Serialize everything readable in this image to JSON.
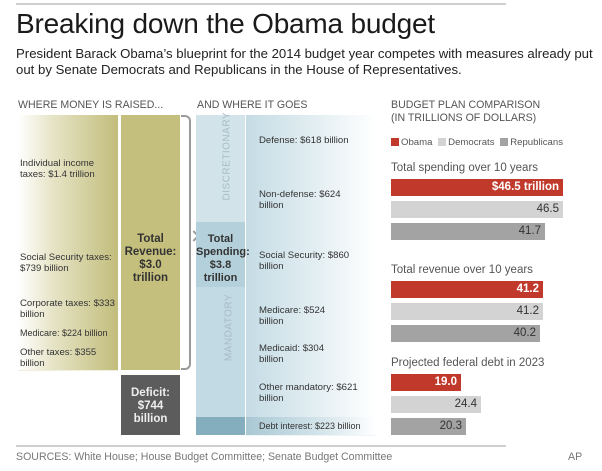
{
  "header": {
    "title": "Breaking down the Obama budget",
    "subtitle": "President Barack Obama’s blueprint for the 2014 budget year competes with measures already put out by Senate Democrats and Republicans in the House of Representatives."
  },
  "revenue": {
    "heading": "WHERE MONEY IS RAISED...",
    "items": [
      {
        "label": "Individual income taxes: $1.4 trillion",
        "value_billion": 1400
      },
      {
        "label": "Social Security taxes: $739 billion",
        "value_billion": 739
      },
      {
        "label": "Corporate taxes: $333 billion",
        "value_billion": 333
      },
      {
        "label": "Medicare: $224 billion",
        "value_billion": 224
      },
      {
        "label": "Other taxes: $355 billion",
        "value_billion": 355
      }
    ],
    "total": {
      "line1": "Total",
      "line2": "Revenue:",
      "line3": "$3.0",
      "line4": "trillion"
    },
    "deficit": {
      "line1": "Deficit:",
      "line2": "$744",
      "line3": "billion"
    }
  },
  "spending": {
    "heading": "AND WHERE IT GOES",
    "categories": {
      "discretionary": "DISCRETIONARY",
      "mandatory": "MANDATORY"
    },
    "items": [
      {
        "label": "Defense: $618 billion",
        "value_billion": 618,
        "category": "discretionary"
      },
      {
        "label": "Non-defense: $624 billion",
        "value_billion": 624,
        "category": "discretionary"
      },
      {
        "label": "Social Security: $860 billion",
        "value_billion": 860,
        "category": "mandatory"
      },
      {
        "label": "Medicare: $524 billion",
        "value_billion": 524,
        "category": "mandatory"
      },
      {
        "label": "Medicaid: $304 billion",
        "value_billion": 304,
        "category": "mandatory"
      },
      {
        "label": "Other mandatory: $621 billion",
        "value_billion": 621,
        "category": "mandatory"
      },
      {
        "label": "Debt interest: $223 billion",
        "value_billion": 223,
        "category": "interest"
      }
    ],
    "total": {
      "line1": "Total",
      "line2": "Spending:",
      "line3": "$3.8",
      "line4": "trillion"
    }
  },
  "comparison": {
    "heading_line1": "BUDGET PLAN COMPARISON",
    "heading_line2": "(IN TRILLIONS OF DOLLARS)",
    "legend": [
      {
        "name": "Obama",
        "color": "#c0392b"
      },
      {
        "name": "Democrats",
        "color": "#d3d3d3"
      },
      {
        "name": "Republicans",
        "color": "#a3a3a3"
      }
    ]
  },
  "chart_data": {
    "type": "bar",
    "title": "Budget plan comparison (in trillions of dollars)",
    "series_names": [
      "Obama",
      "Democrats",
      "Republicans"
    ],
    "groups": [
      {
        "title": "Total spending over 10 years",
        "values": [
          46.5,
          46.5,
          41.7
        ],
        "labels": [
          "$46.5 trillion",
          "46.5",
          "41.7"
        ]
      },
      {
        "title": "Total revenue over 10 years",
        "values": [
          41.2,
          41.2,
          40.2
        ],
        "labels": [
          "41.2",
          "41.2",
          "40.2"
        ]
      },
      {
        "title": "Projected federal debt in 2023",
        "values": [
          19.0,
          24.4,
          20.3
        ],
        "labels": [
          "19.0",
          "24.4",
          "20.3"
        ]
      }
    ],
    "xlim": [
      0,
      46.5
    ],
    "orientation": "horizontal",
    "legend": "top-left"
  },
  "footer": {
    "sources": "SOURCES: White House; House Budget Committee; Senate Budget Committee",
    "credit": "AP"
  }
}
